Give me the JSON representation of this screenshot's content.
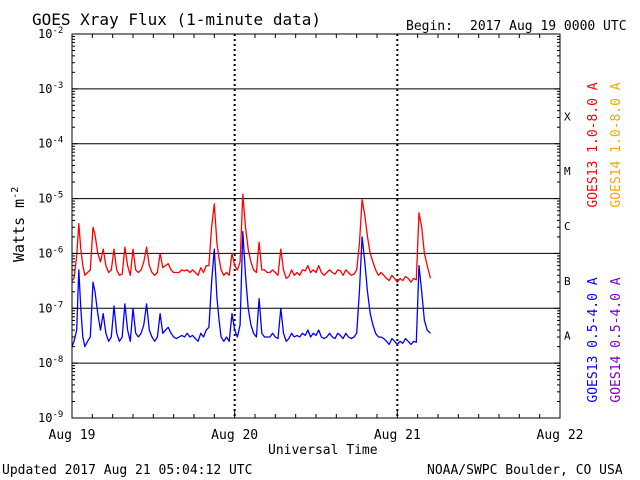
{
  "title": "GOES Xray Flux (1-minute data)",
  "begin": {
    "label": "Begin:",
    "value": "2017 Aug 19 0000 UTC"
  },
  "y_axis": {
    "label_main": "Watts m",
    "label_sup": "-2"
  },
  "x_axis": {
    "label": "Universal Time"
  },
  "flare_classes": [
    "A",
    "B",
    "C",
    "M",
    "X"
  ],
  "footer": {
    "updated": "Updated 2017 Aug 21 05:04:12 UTC",
    "credit": "NOAA/SWPC Boulder, CO USA"
  },
  "legend": [
    {
      "text": "GOES13 1.0-8.0 A",
      "color": "#ff0000"
    },
    {
      "text": "GOES14 1.0-8.0 A",
      "color": "#ffa500"
    },
    {
      "text": "GOES13 0.5-4.0 A",
      "color": "#0000ff"
    },
    {
      "text": "GOES14 0.5-4.0 A",
      "color": "#8000c0"
    }
  ],
  "chart_data": {
    "type": "line",
    "title": "GOES Xray Flux (1-minute data)",
    "xlabel": "Universal Time",
    "ylabel": "Watts m-2",
    "y_scale": "log",
    "ylim": [
      1e-09,
      0.01
    ],
    "y_ticks": [
      {
        "base": "10",
        "exp": "-9"
      },
      {
        "base": "10",
        "exp": "-8"
      },
      {
        "base": "10",
        "exp": "-7"
      },
      {
        "base": "10",
        "exp": "-6"
      },
      {
        "base": "10",
        "exp": "-5"
      },
      {
        "base": "10",
        "exp": "-4"
      },
      {
        "base": "10",
        "exp": "-3"
      },
      {
        "base": "10",
        "exp": "-2"
      }
    ],
    "x_unit": "hours since 2017 Aug 19 0000 UTC",
    "xlim": [
      0,
      72
    ],
    "x_ticks": [
      {
        "label": "Aug 19",
        "x": 0
      },
      {
        "label": "Aug 20",
        "x": 24
      },
      {
        "label": "Aug 21",
        "x": 48
      },
      {
        "label": "Aug 22",
        "x": 72
      }
    ],
    "grid": true,
    "legend_placement": "right, vertical",
    "series": [
      {
        "name": "GOES13 1.0-8.0 A",
        "color": "#ff0000",
        "x": [
          0.0,
          0.3,
          0.7,
          1.0,
          1.3,
          1.6,
          1.9,
          2.3,
          2.7,
          3.1,
          3.4,
          3.8,
          4.2,
          4.6,
          5.0,
          5.4,
          5.8,
          6.2,
          6.6,
          7.0,
          7.4,
          7.8,
          8.2,
          8.6,
          9.0,
          9.4,
          9.8,
          10.2,
          10.6,
          11.0,
          11.4,
          11.8,
          12.2,
          12.6,
          13.0,
          13.4,
          13.8,
          14.2,
          14.6,
          15.0,
          15.4,
          15.8,
          16.2,
          16.6,
          17.0,
          17.4,
          17.8,
          18.2,
          18.6,
          19.0,
          19.4,
          19.8,
          20.2,
          20.6,
          21.0,
          21.4,
          21.7,
          22.0,
          22.4,
          22.8,
          23.2,
          23.6,
          24.0,
          24.4,
          24.8,
          25.2,
          25.6,
          26.0,
          26.4,
          26.8,
          27.2,
          27.6,
          28.0,
          28.4,
          28.8,
          29.2,
          29.6,
          30.0,
          30.4,
          30.8,
          31.2,
          31.6,
          32.0,
          32.4,
          32.8,
          33.2,
          33.6,
          34.0,
          34.4,
          34.8,
          35.2,
          35.6,
          36.0,
          36.4,
          36.8,
          37.2,
          37.6,
          38.0,
          38.4,
          38.8,
          39.2,
          39.6,
          40.0,
          40.4,
          40.8,
          41.2,
          41.6,
          42.0,
          42.4,
          42.8,
          43.2,
          43.6,
          44.0,
          44.4,
          44.8,
          45.2,
          45.6,
          46.0,
          46.4,
          46.8,
          47.2,
          47.6,
          48.0,
          48.4,
          48.8,
          49.2,
          49.6,
          50.0,
          50.4,
          50.8,
          51.2,
          51.6,
          52.0,
          52.4,
          52.9
        ],
        "y": [
          3.2e-07,
          3.5e-07,
          9e-07,
          3.5e-06,
          1.2e-06,
          6e-07,
          4e-07,
          4.5e-07,
          5e-07,
          3e-06,
          2.2e-06,
          1e-06,
          7e-07,
          1.2e-06,
          6e-07,
          4.5e-07,
          5e-07,
          1.2e-06,
          5e-07,
          4e-07,
          4.2e-07,
          1.3e-06,
          6e-07,
          4e-07,
          1.2e-06,
          5e-07,
          4.5e-07,
          5e-07,
          7e-07,
          1.3e-06,
          6e-07,
          4.5e-07,
          4e-07,
          4.5e-07,
          1e-06,
          5.5e-07,
          6e-07,
          6.5e-07,
          5e-07,
          4.5e-07,
          4.5e-07,
          4.5e-07,
          5e-07,
          4.8e-07,
          5e-07,
          4.5e-07,
          5e-07,
          4.5e-07,
          4e-07,
          5.5e-07,
          4.5e-07,
          6e-07,
          6e-07,
          3e-06,
          8e-06,
          1.5e-06,
          8e-07,
          5e-07,
          4e-07,
          4.5e-07,
          4e-07,
          1e-06,
          6e-07,
          5e-07,
          7e-07,
          1.2e-05,
          3e-06,
          1.2e-06,
          7e-07,
          5e-07,
          4.5e-07,
          1.6e-06,
          5e-07,
          5e-07,
          4.5e-07,
          4.5e-07,
          5e-07,
          4.5e-07,
          4e-07,
          1.2e-06,
          5e-07,
          3.5e-07,
          3.8e-07,
          5e-07,
          4e-07,
          4.5e-07,
          4e-07,
          5e-07,
          4.8e-07,
          6e-07,
          4.5e-07,
          5e-07,
          4.5e-07,
          6e-07,
          4.5e-07,
          4e-07,
          4.5e-07,
          5e-07,
          4.5e-07,
          4.2e-07,
          5e-07,
          4.8e-07,
          4e-07,
          5e-07,
          4.5e-07,
          4e-07,
          4.2e-07,
          5e-07,
          1.5e-06,
          9.5e-06,
          5e-06,
          2e-06,
          1e-06,
          7e-07,
          5e-07,
          4e-07,
          4.5e-07,
          4e-07,
          3.5e-07,
          3.2e-07,
          4e-07,
          3.5e-07,
          3e-07,
          3.5e-07,
          3.2e-07,
          3.8e-07,
          3.5e-07,
          3e-07,
          3.5e-07,
          3.3e-07,
          5.5e-06,
          3e-06,
          1e-06,
          6e-07,
          3.5e-07
        ]
      },
      {
        "name": "GOES13 0.5-4.0 A",
        "color": "#0000ff",
        "x": [
          0.0,
          0.3,
          0.7,
          1.0,
          1.3,
          1.6,
          1.9,
          2.3,
          2.7,
          3.1,
          3.4,
          3.8,
          4.2,
          4.6,
          5.0,
          5.4,
          5.8,
          6.2,
          6.6,
          7.0,
          7.4,
          7.8,
          8.2,
          8.6,
          9.0,
          9.4,
          9.8,
          10.2,
          10.6,
          11.0,
          11.4,
          11.8,
          12.2,
          12.6,
          13.0,
          13.4,
          13.8,
          14.2,
          14.6,
          15.0,
          15.4,
          15.8,
          16.2,
          16.6,
          17.0,
          17.4,
          17.8,
          18.2,
          18.6,
          19.0,
          19.4,
          19.8,
          20.2,
          20.6,
          21.0,
          21.4,
          21.7,
          22.0,
          22.4,
          22.8,
          23.2,
          23.6,
          24.0,
          24.4,
          24.8,
          25.2,
          25.6,
          26.0,
          26.4,
          26.8,
          27.2,
          27.6,
          28.0,
          28.4,
          28.8,
          29.2,
          29.6,
          30.0,
          30.4,
          30.8,
          31.2,
          31.6,
          32.0,
          32.4,
          32.8,
          33.2,
          33.6,
          34.0,
          34.4,
          34.8,
          35.2,
          35.6,
          36.0,
          36.4,
          36.8,
          37.2,
          37.6,
          38.0,
          38.4,
          38.8,
          39.2,
          39.6,
          40.0,
          40.4,
          40.8,
          41.2,
          41.6,
          42.0,
          42.4,
          42.8,
          43.2,
          43.6,
          44.0,
          44.4,
          44.8,
          45.2,
          45.6,
          46.0,
          46.4,
          46.8,
          47.2,
          47.6,
          48.0,
          48.4,
          48.8,
          49.2,
          49.6,
          50.0,
          50.4,
          50.8,
          51.2,
          51.6,
          52.0,
          52.4,
          52.9
        ],
        "y": [
          2e-08,
          2.5e-08,
          4e-08,
          5e-07,
          1e-07,
          3e-08,
          2e-08,
          2.5e-08,
          3e-08,
          3e-07,
          2e-07,
          8e-08,
          4e-08,
          8e-08,
          3.5e-08,
          2.5e-08,
          3e-08,
          1.1e-07,
          3.5e-08,
          2.5e-08,
          3e-08,
          1.2e-07,
          4e-08,
          2.5e-08,
          1e-07,
          3.5e-08,
          3e-08,
          3.5e-08,
          5e-08,
          1.2e-07,
          4e-08,
          3e-08,
          2.5e-08,
          3e-08,
          8e-08,
          3.5e-08,
          4e-08,
          4.5e-08,
          3.5e-08,
          3e-08,
          2.8e-08,
          3e-08,
          3.2e-08,
          3e-08,
          3.5e-08,
          3e-08,
          3.2e-08,
          2.8e-08,
          2.5e-08,
          3.5e-08,
          3e-08,
          4e-08,
          4.5e-08,
          3e-07,
          1.2e-06,
          1.5e-07,
          6e-08,
          3e-08,
          2.5e-08,
          3e-08,
          2.5e-08,
          8e-08,
          4e-08,
          3e-08,
          5e-08,
          2.5e-06,
          4e-07,
          1e-07,
          5e-08,
          3.5e-08,
          3e-08,
          1.5e-07,
          3.5e-08,
          3e-08,
          3e-08,
          3e-08,
          3.5e-08,
          3e-08,
          2.8e-08,
          1e-07,
          3.5e-08,
          2.5e-08,
          2.8e-08,
          3.5e-08,
          3e-08,
          3.2e-08,
          3e-08,
          3.5e-08,
          3.2e-08,
          4e-08,
          3e-08,
          3.5e-08,
          3.2e-08,
          4e-08,
          3e-08,
          2.8e-08,
          3e-08,
          3.5e-08,
          3e-08,
          2.8e-08,
          3.5e-08,
          3.2e-08,
          2.8e-08,
          3.5e-08,
          3e-08,
          2.8e-08,
          3e-08,
          3.5e-08,
          2e-07,
          2e-06,
          7e-07,
          2e-07,
          8e-08,
          5e-08,
          3.5e-08,
          3e-08,
          3e-08,
          2.8e-08,
          2.5e-08,
          2.2e-08,
          2.8e-08,
          2.5e-08,
          2.2e-08,
          2.5e-08,
          2.3e-08,
          2.8e-08,
          2.5e-08,
          2.2e-08,
          2.5e-08,
          2.4e-08,
          6e-07,
          2e-07,
          6e-08,
          4e-08,
          3.5e-08
        ]
      }
    ]
  }
}
